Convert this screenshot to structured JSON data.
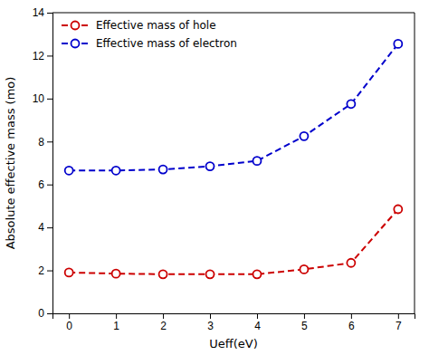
{
  "chart_data": {
    "type": "line",
    "x_label": "Ueff(eV)",
    "y_label": "Absolute effective mass (mo)",
    "x": [
      0,
      1,
      2,
      3,
      4,
      5,
      6,
      7
    ],
    "series": [
      {
        "name": "Effective mass of hole",
        "color": "#cc0000",
        "values": [
          1.9,
          1.85,
          1.82,
          1.82,
          1.82,
          2.05,
          2.35,
          4.85
        ],
        "marker": "circle",
        "line_style": "dashed"
      },
      {
        "name": "Effective mass of electron",
        "color": "#0000cc",
        "values": [
          6.65,
          6.65,
          6.7,
          6.85,
          7.1,
          8.25,
          9.75,
          12.55
        ],
        "marker": "circle",
        "line_style": "dashed"
      }
    ],
    "xlim": [
      -0.35,
      7.35
    ],
    "xticks": [
      0,
      1,
      2,
      3,
      4,
      5,
      6,
      7
    ],
    "ylim": [
      0,
      14
    ],
    "yticks": [
      0,
      2,
      4,
      6,
      8,
      10,
      12,
      14
    ],
    "grid": false,
    "legend": "upper left"
  }
}
